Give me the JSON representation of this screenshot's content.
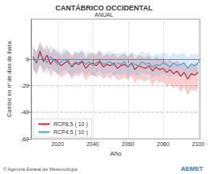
{
  "chart_data": {
    "type": "line",
    "title": "CANTÁBRICO OCCIDENTAL",
    "subtitle": "ANUAL",
    "x_label": "Año",
    "y_label": "Cambio en nº de días de lluvia",
    "x": [
      2006,
      2008,
      2010,
      2012,
      2014,
      2016,
      2018,
      2020,
      2022,
      2024,
      2026,
      2028,
      2030,
      2032,
      2034,
      2036,
      2038,
      2040,
      2042,
      2044,
      2046,
      2048,
      2050,
      2052,
      2054,
      2056,
      2058,
      2060,
      2062,
      2064,
      2066,
      2068,
      2070,
      2072,
      2074,
      2076,
      2078,
      2080,
      2082,
      2084,
      2086,
      2088,
      2090,
      2092,
      2094,
      2096,
      2098,
      2100
    ],
    "series": [
      {
        "name": "RCP8.5 ( 10 )",
        "color": "#d7262b",
        "values": [
          2,
          -3,
          6,
          -2,
          3,
          -4,
          0,
          -2,
          -5,
          -3,
          -1,
          -6,
          -3,
          -4,
          -2,
          -7,
          -4,
          -3,
          -5,
          -2,
          -6,
          -4,
          -5,
          -3,
          -7,
          -5,
          -4,
          -6,
          -3,
          -8,
          -5,
          -6,
          -7,
          -5,
          -9,
          -6,
          -8,
          -7,
          -10,
          -8,
          -11,
          -9,
          -13,
          -10,
          -15,
          -11,
          -12,
          -10
        ],
        "lower": [
          -7,
          -12,
          -4,
          -11,
          -6,
          -13,
          -9,
          -11,
          -14,
          -12,
          -10,
          -15,
          -12,
          -13,
          -11,
          -16,
          -13,
          -12,
          -14,
          -12,
          -15,
          -13,
          -15,
          -12,
          -16,
          -15,
          -14,
          -16,
          -13,
          -18,
          -15,
          -16,
          -17,
          -15,
          -20,
          -16,
          -18,
          -17,
          -21,
          -19,
          -22,
          -20,
          -25,
          -21,
          -27,
          -23,
          -24,
          -22
        ],
        "upper": [
          10,
          5,
          14,
          6,
          11,
          4,
          8,
          6,
          3,
          5,
          7,
          2,
          5,
          4,
          6,
          1,
          4,
          5,
          3,
          6,
          2,
          4,
          3,
          5,
          1,
          3,
          4,
          2,
          5,
          0,
          3,
          2,
          1,
          3,
          -1,
          2,
          0,
          1,
          -2,
          0,
          -3,
          -1,
          -4,
          -2,
          -6,
          -3,
          -4,
          -2
        ]
      },
      {
        "name": "RCP4.5 ( 10 )",
        "color": "#4da6d6",
        "values": [
          0,
          -2,
          3,
          1,
          -3,
          2,
          -1,
          -4,
          -2,
          0,
          -3,
          -5,
          -2,
          -3,
          -1,
          -4,
          -2,
          -5,
          -3,
          -1,
          -4,
          -3,
          -2,
          -5,
          -3,
          -4,
          -2,
          -6,
          -3,
          -4,
          -5,
          -2,
          -4,
          -3,
          -6,
          -4,
          -5,
          -3,
          -4,
          -6,
          -3,
          -5,
          -4,
          -3,
          -7,
          -4,
          -5,
          -3
        ],
        "lower": [
          -8,
          -10,
          -5,
          -7,
          -11,
          -6,
          -9,
          -12,
          -10,
          -8,
          -11,
          -13,
          -10,
          -11,
          -9,
          -12,
          -10,
          -13,
          -11,
          -9,
          -12,
          -11,
          -10,
          -13,
          -11,
          -12,
          -10,
          -14,
          -11,
          -12,
          -13,
          -10,
          -12,
          -11,
          -14,
          -12,
          -13,
          -11,
          -12,
          -14,
          -11,
          -13,
          -12,
          -11,
          -15,
          -12,
          -13,
          -11
        ],
        "upper": [
          8,
          6,
          11,
          9,
          5,
          10,
          7,
          4,
          6,
          8,
          5,
          3,
          6,
          5,
          7,
          4,
          6,
          3,
          5,
          7,
          4,
          5,
          6,
          3,
          5,
          4,
          6,
          2,
          5,
          4,
          3,
          6,
          4,
          5,
          2,
          4,
          3,
          5,
          4,
          2,
          5,
          3,
          4,
          5,
          1,
          4,
          3,
          5
        ]
      }
    ],
    "xlim": [
      2005,
      2101
    ],
    "xticks": [
      2020,
      2040,
      2060,
      2080,
      2100
    ],
    "ylim": [
      -60,
      30
    ],
    "yticks": [
      -60,
      -40,
      -20,
      0
    ],
    "grid": true,
    "legend": "bottom-left",
    "annotations": [
      {
        "text": "© Agencia Estatal de Meteorología"
      },
      {
        "text": "AEMET"
      }
    ]
  }
}
